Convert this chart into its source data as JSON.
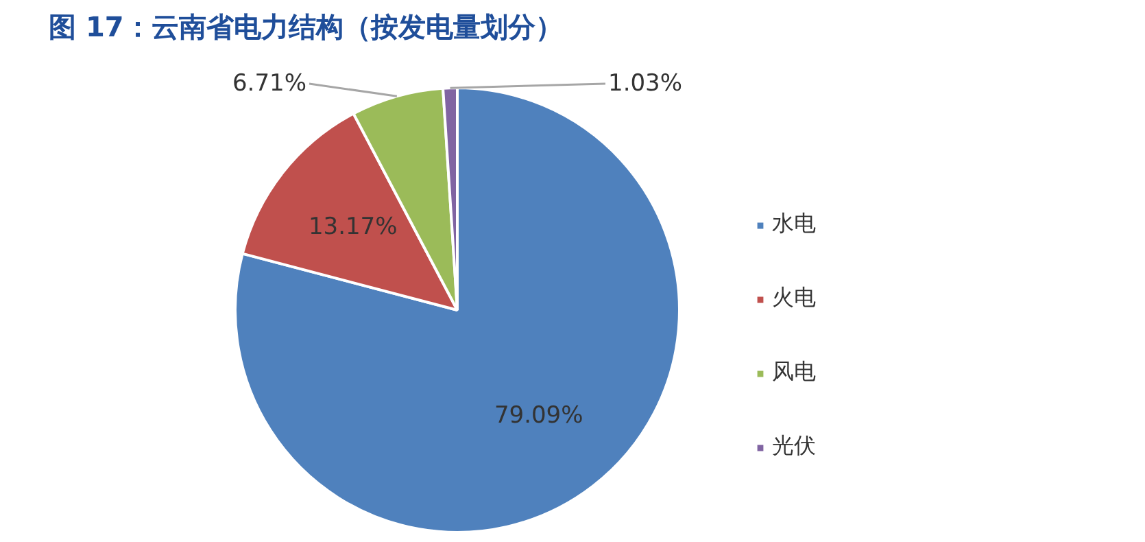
{
  "chart_data": {
    "type": "pie",
    "title": "图 17：云南省电力结构（按发电量划分）",
    "categories": [
      "水电",
      "火电",
      "风电",
      "光伏"
    ],
    "values": [
      79.09,
      13.17,
      6.71,
      1.03
    ],
    "colors": [
      "#4f81bd",
      "#c0504d",
      "#9bbb59",
      "#8064a2"
    ],
    "value_labels": [
      "79.09%",
      "13.17%",
      "6.71%",
      "1.03%"
    ],
    "legend": "right"
  }
}
